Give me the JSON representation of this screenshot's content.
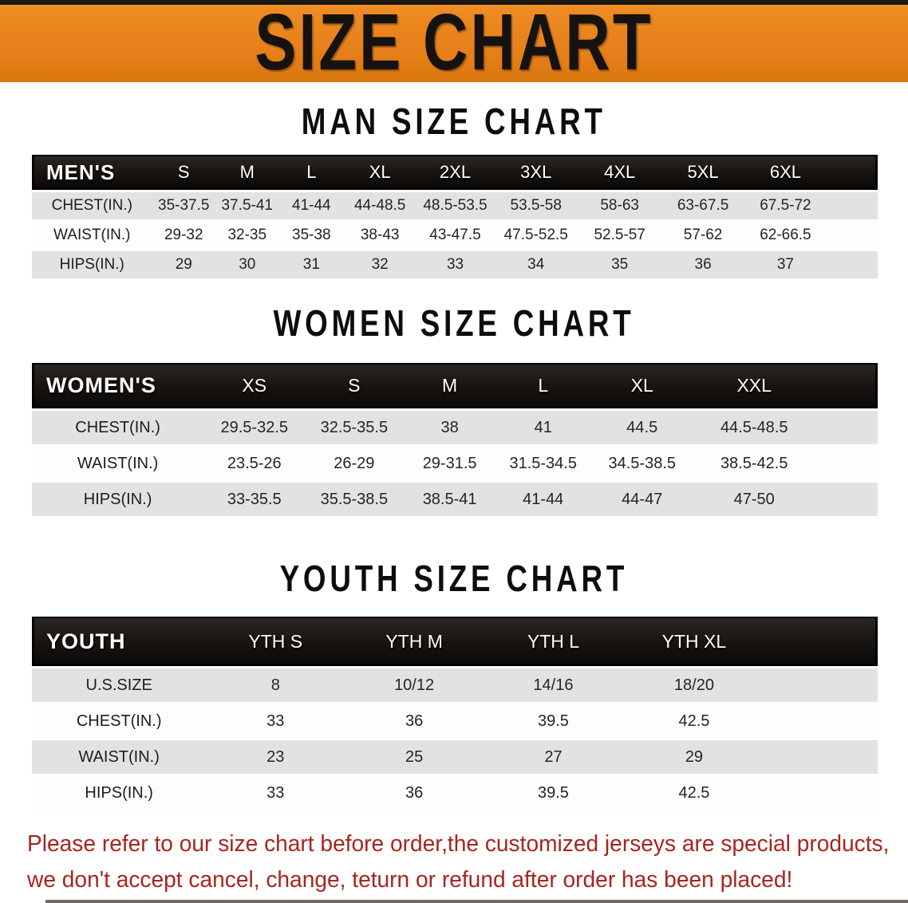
{
  "banner": {
    "title": "SIZE CHART",
    "bg_color": "#e8811b"
  },
  "tables": [
    {
      "id": "men",
      "title": "MAN SIZE CHART",
      "group_label": "MEN'S",
      "sizes": [
        "S",
        "M",
        "L",
        "XL",
        "2XL",
        "3XL",
        "4XL",
        "5XL",
        "6XL"
      ],
      "rows": [
        {
          "label": "CHEST(IN.)",
          "values": [
            "35-37.5",
            "37.5-41",
            "41-44",
            "44-48.5",
            "48.5-53.5",
            "53.5-58",
            "58-63",
            "63-67.5",
            "67.5-72"
          ]
        },
        {
          "label": "WAIST(IN.)",
          "values": [
            "29-32",
            "32-35",
            "35-38",
            "38-43",
            "43-47.5",
            "47.5-52.5",
            "52.5-57",
            "57-62",
            "62-66.5"
          ]
        },
        {
          "label": "HIPS(IN.)",
          "values": [
            "29",
            "30",
            "31",
            "32",
            "33",
            "34",
            "35",
            "36",
            "37"
          ]
        }
      ]
    },
    {
      "id": "women",
      "title": "WOMEN SIZE CHART",
      "group_label": "WOMEN'S",
      "sizes": [
        "XS",
        "S",
        "M",
        "L",
        "XL",
        "XXL"
      ],
      "rows": [
        {
          "label": "CHEST(IN.)",
          "values": [
            "29.5-32.5",
            "32.5-35.5",
            "38",
            "41",
            "44.5",
            "44.5-48.5"
          ]
        },
        {
          "label": "WAIST(IN.)",
          "values": [
            "23.5-26",
            "26-29",
            "29-31.5",
            "31.5-34.5",
            "34.5-38.5",
            "38.5-42.5"
          ]
        },
        {
          "label": "HIPS(IN.)",
          "values": [
            "33-35.5",
            "35.5-38.5",
            "38.5-41",
            "41-44",
            "44-47",
            "47-50"
          ]
        }
      ]
    },
    {
      "id": "youth",
      "title": "YOUTH SIZE CHART",
      "group_label": "YOUTH",
      "sizes": [
        "YTH S",
        "YTH M",
        "YTH L",
        "YTH XL"
      ],
      "rows": [
        {
          "label": "U.S.SIZE",
          "values": [
            "8",
            "10/12",
            "14/16",
            "18/20"
          ]
        },
        {
          "label": "CHEST(IN.)",
          "values": [
            "33",
            "36",
            "39.5",
            "42.5"
          ]
        },
        {
          "label": "WAIST(IN.)",
          "values": [
            "23",
            "25",
            "27",
            "29"
          ]
        },
        {
          "label": "HIPS(IN.)",
          "values": [
            "33",
            "36",
            "39.5",
            "42.5"
          ]
        }
      ]
    }
  ],
  "disclaimer": {
    "line1": "Please refer to our size chart before order,the customized jerseys are special products,",
    "line2": "we don't accept cancel, change, teturn or refund after order has been placed!",
    "color": "#a8251f"
  },
  "colors": {
    "banner_orange": "#e8811b",
    "header_black": "#171310",
    "row_gray": "#e4e2e1",
    "row_white": "#fdfdfd",
    "disclaimer_red": "#a8251f"
  }
}
